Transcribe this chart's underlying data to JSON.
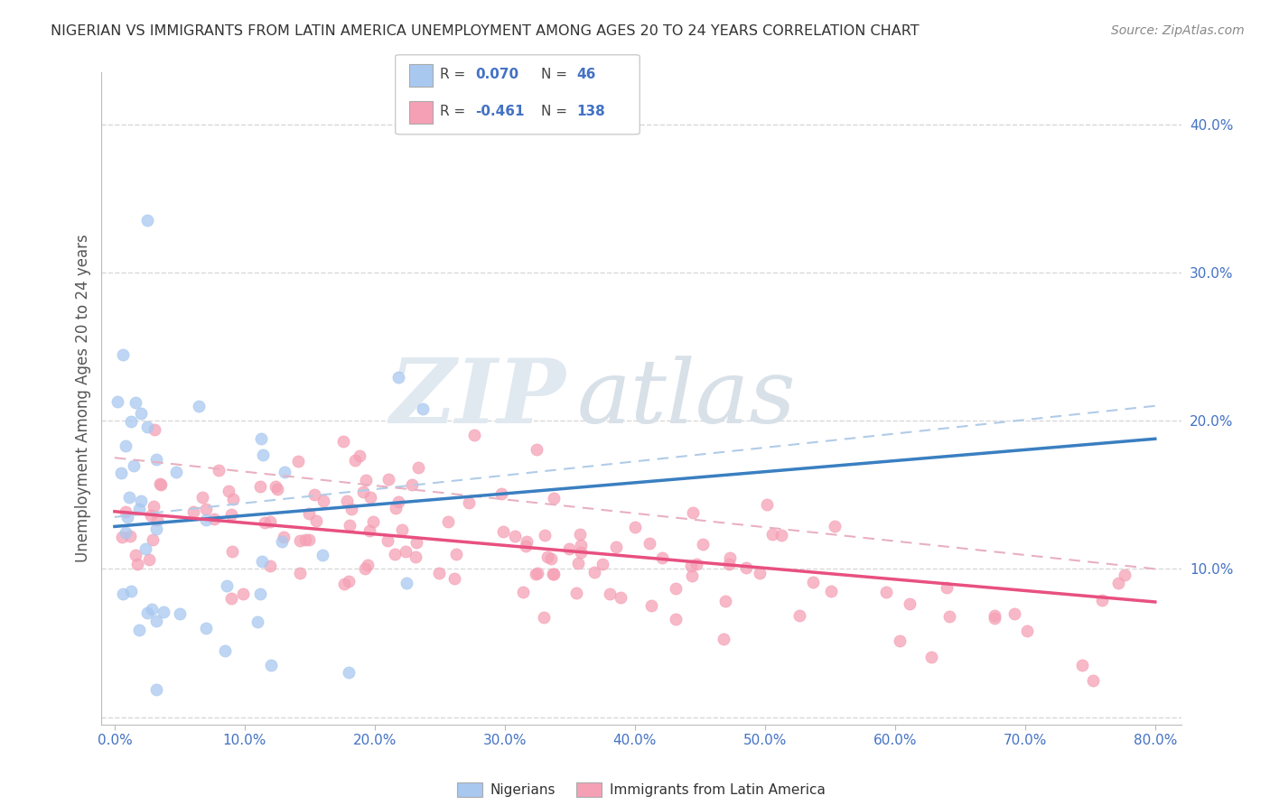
{
  "title": "NIGERIAN VS IMMIGRANTS FROM LATIN AMERICA UNEMPLOYMENT AMONG AGES 20 TO 24 YEARS CORRELATION CHART",
  "source": "Source: ZipAtlas.com",
  "ylabel_label": "Unemployment Among Ages 20 to 24 years",
  "legend_label1": "Nigerians",
  "legend_label2": "Immigrants from Latin America",
  "r1": 0.07,
  "n1": 46,
  "r2": -0.461,
  "n2": 138,
  "xlim": [
    -0.01,
    0.82
  ],
  "ylim": [
    -0.005,
    0.435
  ],
  "xticks": [
    0.0,
    0.1,
    0.2,
    0.3,
    0.4,
    0.5,
    0.6,
    0.7,
    0.8
  ],
  "yticks": [
    0.0,
    0.1,
    0.2,
    0.3,
    0.4
  ],
  "xticklabels": [
    "0.0%",
    "10.0%",
    "20.0%",
    "30.0%",
    "40.0%",
    "50.0%",
    "60.0%",
    "70.0%",
    "80.0%"
  ],
  "yticklabels_right": [
    "",
    "10.0%",
    "20.0%",
    "30.0%",
    "40.0%"
  ],
  "blue_color": "#a8c8f0",
  "blue_line_color": "#3a7fc1",
  "blue_dash_color": "#b0cce8",
  "pink_color": "#f5a0b5",
  "pink_line_color": "#e85080",
  "pink_dash_color": "#e8b0c0",
  "text_color_blue": "#4472c4",
  "text_color_dark": "#555555",
  "background_color": "#ffffff",
  "grid_color": "#d8d8d8",
  "watermark_zip_color": "#e0e8f0",
  "watermark_atlas_color": "#d8e0e8"
}
